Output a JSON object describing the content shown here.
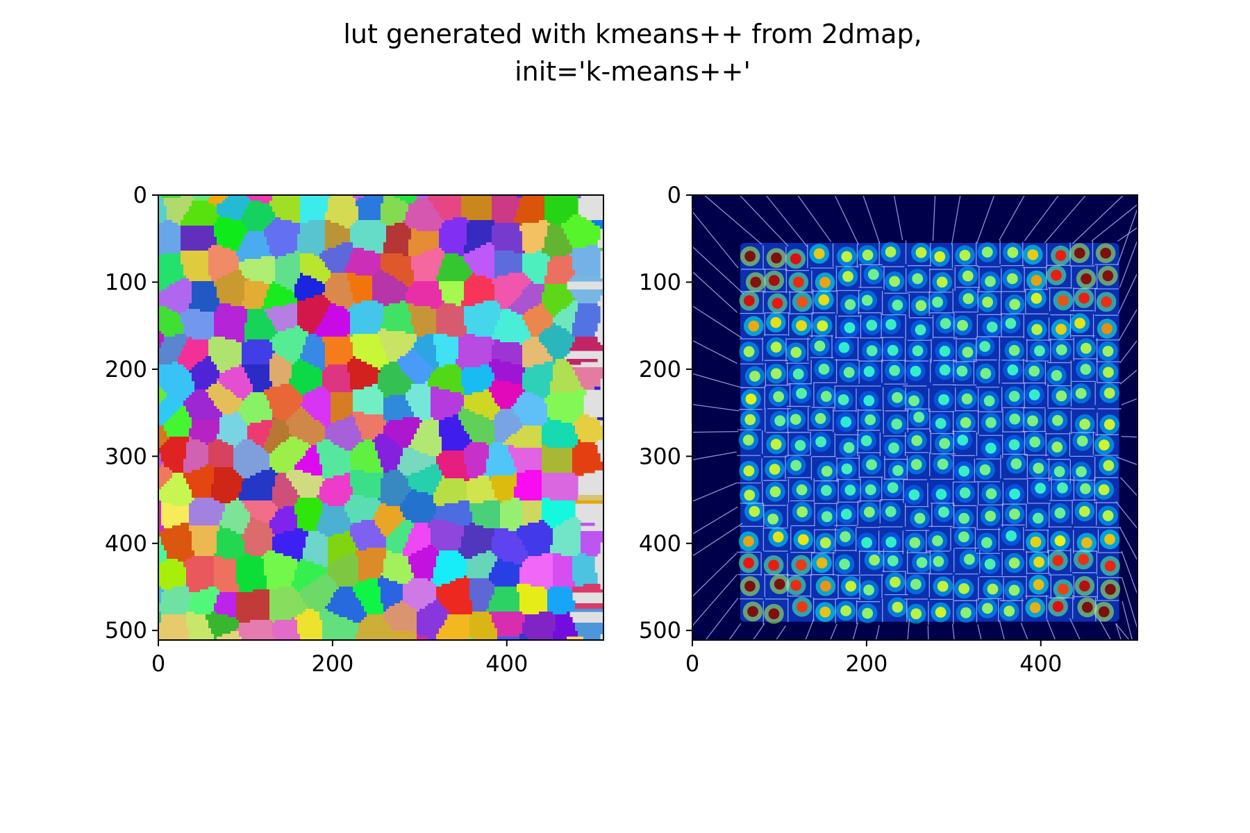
{
  "figure": {
    "title_line1": "lut generated with kmeans++ from 2dmap,",
    "title_line2": "init='k-means++'"
  },
  "chart_data": [
    {
      "type": "heatmap",
      "panel": "left",
      "description_kind": "voronoi label map",
      "title": "",
      "xlabel": "",
      "ylabel": "",
      "xlim": [
        0,
        511
      ],
      "ylim": [
        511,
        0
      ],
      "x_ticks": [
        0,
        200,
        400
      ],
      "y_ticks": [
        0,
        100,
        200,
        300,
        400,
        500
      ],
      "grid": false,
      "legend": "none",
      "grid_count": 16
    },
    {
      "type": "heatmap",
      "panel": "right",
      "description_kind": "density map with voronoi overlay",
      "colormap": "jet",
      "title": "",
      "xlabel": "",
      "ylabel": "",
      "xlim": [
        0,
        511
      ],
      "ylim": [
        511,
        0
      ],
      "x_ticks": [
        0,
        200,
        400
      ],
      "y_ticks": [
        0,
        100,
        200,
        300,
        400,
        500
      ],
      "grid": false,
      "legend": "none",
      "occupied_range": [
        55,
        490
      ],
      "grid_count": 16,
      "hot_corners": [
        "top-left",
        "top-right",
        "bottom-left",
        "bottom-right"
      ],
      "colors": {
        "background": "#00004a",
        "overlay_line": "#b8c4ff"
      }
    }
  ]
}
